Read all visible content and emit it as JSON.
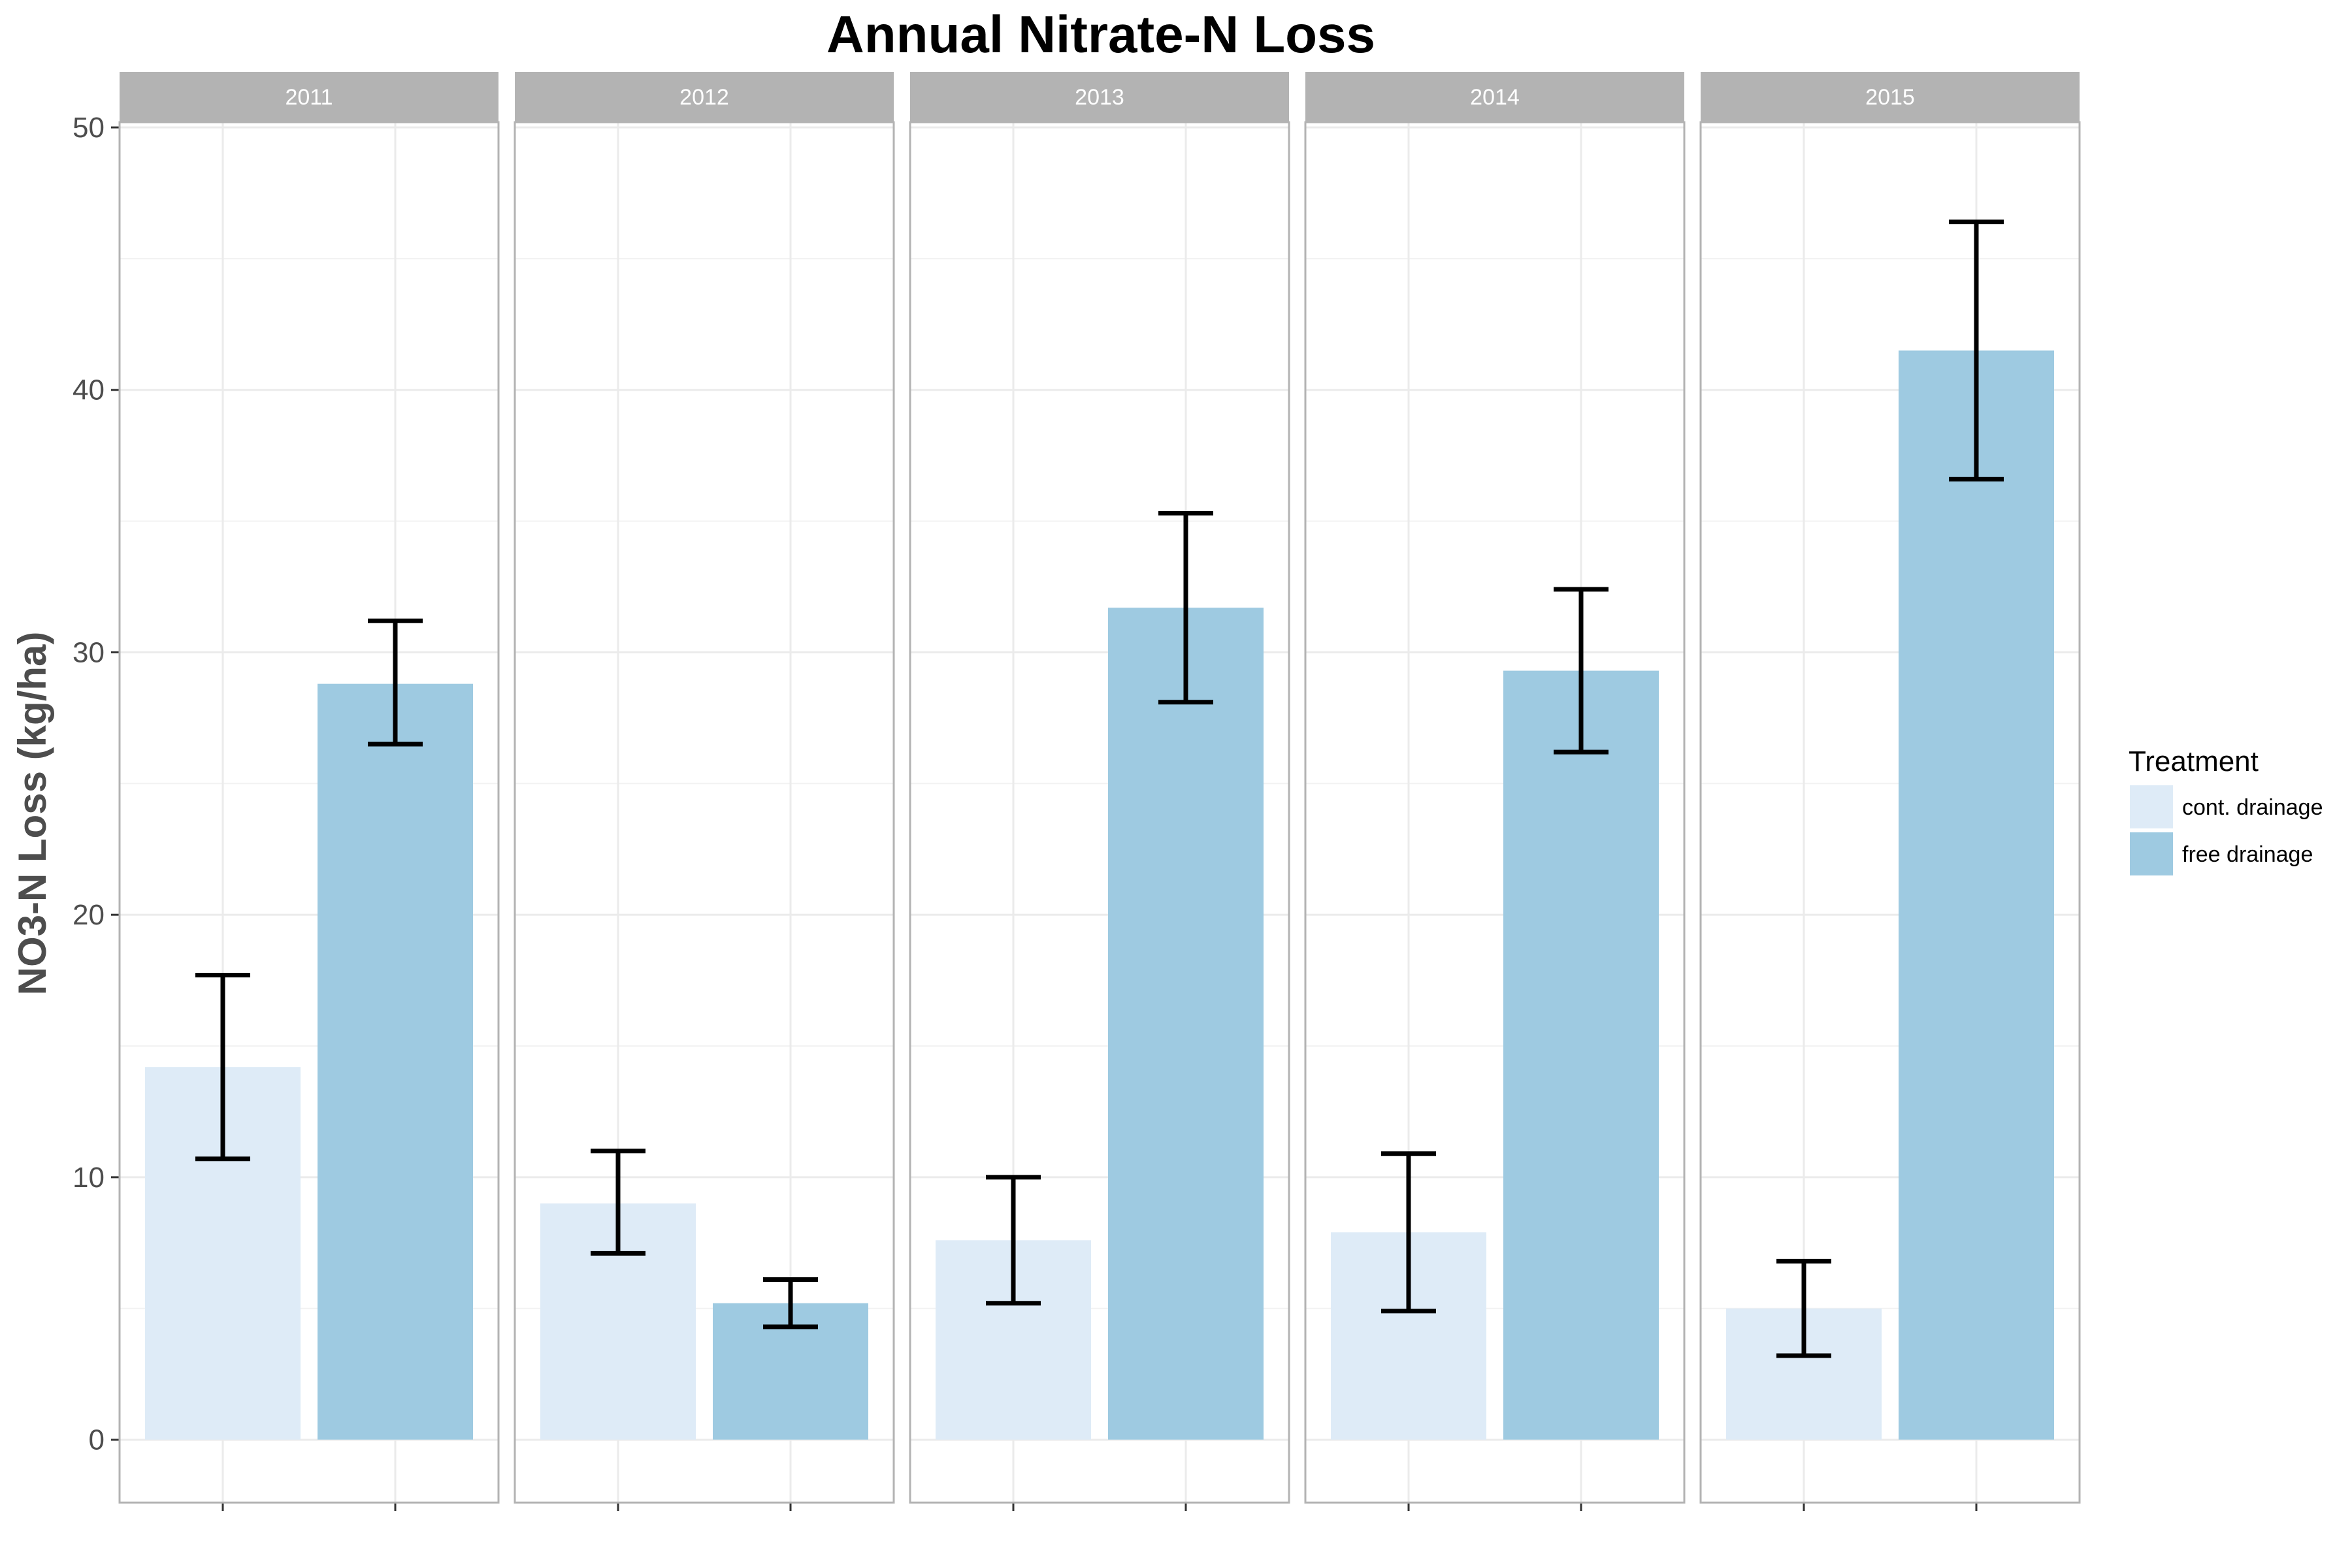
{
  "chart_data": {
    "type": "bar",
    "title": "Annual Nitrate-N Loss",
    "xlabel": "",
    "ylabel": "NO3-N Loss (kg/ha)",
    "ylim": [
      -2.4,
      50.2
    ],
    "yticks": [
      0,
      10,
      20,
      30,
      40,
      50
    ],
    "grid": true,
    "legend": {
      "title": "Treatment",
      "position": "right",
      "entries": [
        {
          "label": "cont. drainage",
          "color": "#deebf7"
        },
        {
          "label": "free drainage",
          "color": "#9ecae1"
        }
      ]
    },
    "facets": [
      "2011",
      "2012",
      "2013",
      "2014",
      "2015"
    ],
    "series": [
      {
        "name": "cont. drainage",
        "color": "#deebf7",
        "values": [
          14.2,
          9.0,
          7.6,
          7.9,
          5.0
        ],
        "error_low": [
          10.7,
          7.1,
          5.2,
          4.9,
          3.2
        ],
        "error_high": [
          17.7,
          11.0,
          10.0,
          10.9,
          6.8
        ]
      },
      {
        "name": "free drainage",
        "color": "#9ecae1",
        "values": [
          28.8,
          5.2,
          31.7,
          29.3,
          41.5
        ],
        "error_low": [
          26.5,
          4.3,
          28.1,
          26.2,
          36.6
        ],
        "error_high": [
          31.2,
          6.1,
          35.3,
          32.4,
          46.4
        ]
      }
    ]
  }
}
